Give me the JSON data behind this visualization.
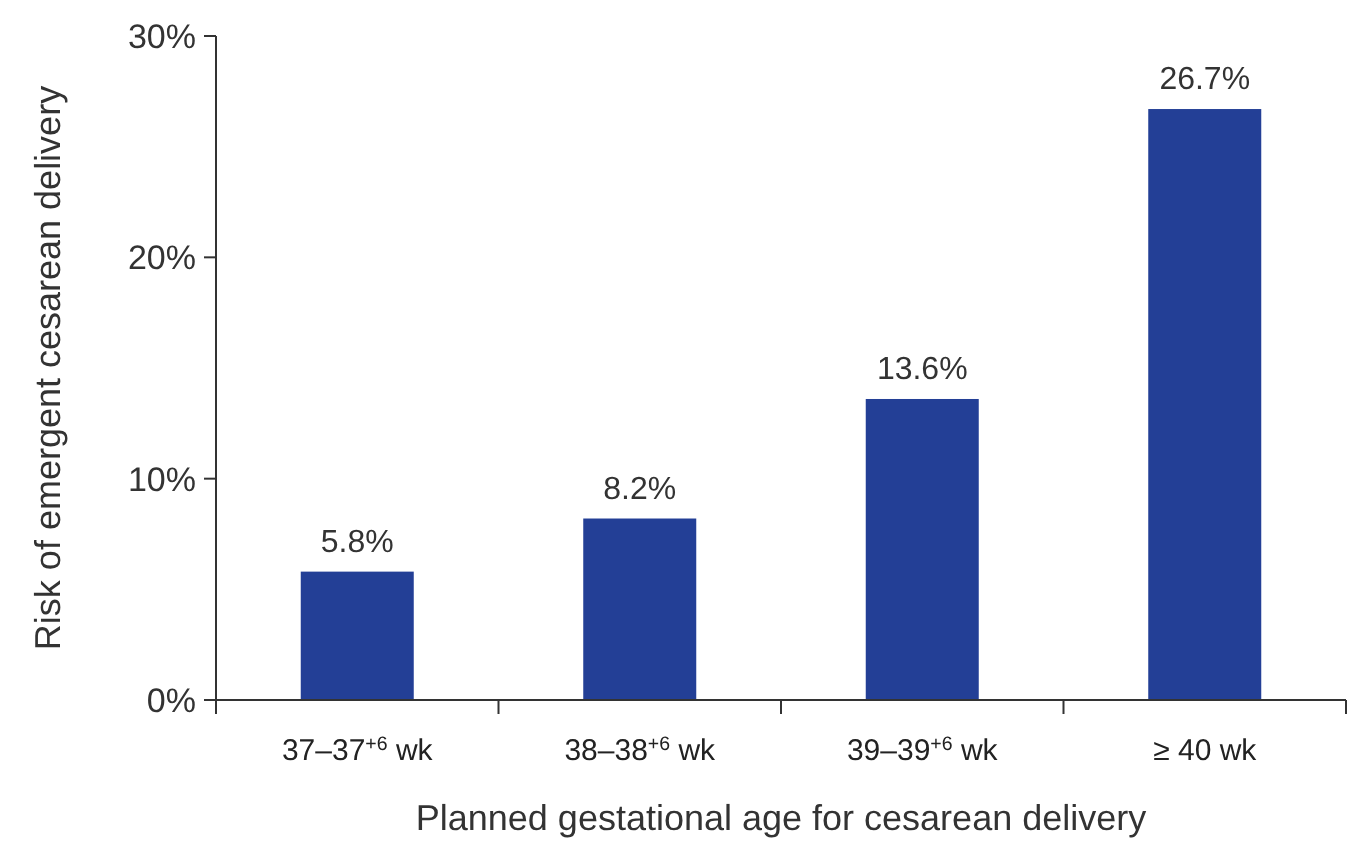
{
  "chart_data": {
    "type": "bar",
    "xlabel": "Planned gestational age for cesarean delivery",
    "ylabel": "Risk of emergent cesarean delivery",
    "categories": [
      "37–37$^{+6}$ wk",
      "38–38$^{+6}$ wk",
      "39–39$^{+6}$ wk",
      "≥ 40 wk"
    ],
    "values": [
      5.8,
      8.2,
      13.6,
      26.7
    ],
    "color": "#233f96",
    "value_labels": [
      "5.8%",
      "8.2%",
      "13.6%",
      "26.7%"
    ],
    "ylim": [
      0,
      30
    ],
    "yticks": [
      {
        "value": 0,
        "label": "0%"
      },
      {
        "value": 10,
        "label": "10%"
      },
      {
        "value": 20,
        "label": "20%"
      },
      {
        "value": 30,
        "label": "30%"
      }
    ],
    "grid": false
  }
}
